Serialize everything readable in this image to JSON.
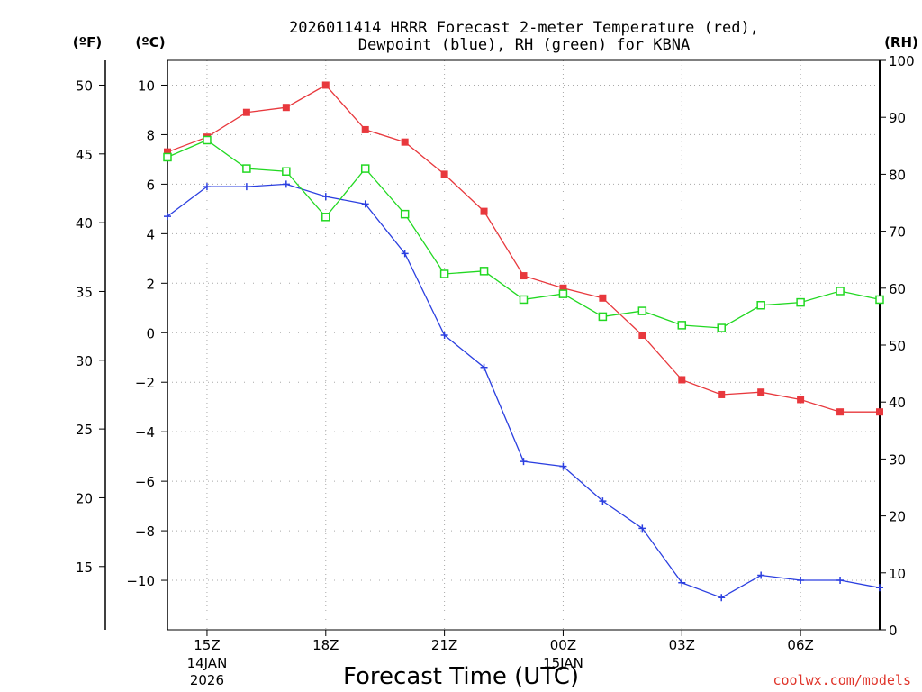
{
  "chart_data": {
    "type": "line",
    "title_line1": "2026011414 HRRR Forecast 2-meter Temperature (red),",
    "title_line2": "Dewpoint (blue), RH (green) for KBNA",
    "xlabel": "Forecast Time (UTC)",
    "credit": "coolwx.com/models",
    "unit_f": "(ºF)",
    "unit_c": "(ºC)",
    "unit_rh": "(RH)",
    "hours": [
      14,
      15,
      16,
      17,
      18,
      19,
      20,
      21,
      22,
      23,
      24,
      25,
      26,
      27,
      28,
      29,
      30,
      31,
      32
    ],
    "xlim": [
      14,
      32
    ],
    "c_lim": [
      -12,
      11
    ],
    "f_lim": [
      10.4,
      51.8
    ],
    "rh_lim": [
      0,
      100
    ],
    "c_ticks": [
      -10,
      -8,
      -6,
      -4,
      -2,
      0,
      2,
      4,
      6,
      8,
      10
    ],
    "c_tick_labels": [
      "−10",
      "−8",
      "−6",
      "−4",
      "−2",
      "0",
      "2",
      "4",
      "6",
      "8",
      "10"
    ],
    "f_ticks": [
      15,
      20,
      25,
      30,
      35,
      40,
      45,
      50
    ],
    "f_tick_labels": [
      "15",
      "20",
      "25",
      "30",
      "35",
      "40",
      "45",
      "50"
    ],
    "rh_ticks": [
      0,
      10,
      20,
      30,
      40,
      50,
      60,
      70,
      80,
      90,
      100
    ],
    "rh_tick_labels": [
      "0",
      "10",
      "20",
      "30",
      "40",
      "50",
      "60",
      "70",
      "80",
      "90",
      "100"
    ],
    "x_ticks": [
      {
        "hour": 15,
        "label": "15Z",
        "sub1": "14JAN",
        "sub2": "2026"
      },
      {
        "hour": 18,
        "label": "18Z",
        "sub1": "",
        "sub2": ""
      },
      {
        "hour": 21,
        "label": "21Z",
        "sub1": "",
        "sub2": ""
      },
      {
        "hour": 24,
        "label": "00Z",
        "sub1": "15JAN",
        "sub2": ""
      },
      {
        "hour": 27,
        "label": "03Z",
        "sub1": "",
        "sub2": ""
      },
      {
        "hour": 30,
        "label": "06Z",
        "sub1": "",
        "sub2": ""
      }
    ],
    "series": [
      {
        "name": "Temperature",
        "axis": "C",
        "color": "#e8383d",
        "marker": "filled-square",
        "values": [
          7.3,
          7.9,
          8.9,
          9.1,
          10.0,
          8.2,
          7.7,
          6.4,
          4.9,
          2.3,
          1.8,
          1.4,
          -0.1,
          -1.9,
          -2.5,
          -2.4,
          -2.7,
          -3.2,
          -3.2
        ]
      },
      {
        "name": "Dewpoint",
        "axis": "C",
        "color": "#2b3fe0",
        "marker": "plus",
        "values": [
          4.7,
          5.9,
          5.9,
          6.0,
          5.5,
          5.2,
          3.2,
          -0.1,
          -1.4,
          -5.2,
          -5.4,
          -6.8,
          -7.9,
          -10.1,
          -10.7,
          -9.8,
          -10.0,
          -10.0,
          -10.3
        ]
      },
      {
        "name": "RH",
        "axis": "RH",
        "color": "#22d822",
        "marker": "open-square",
        "values": [
          83,
          86,
          81,
          80.5,
          72.5,
          81,
          73,
          62.5,
          63,
          58,
          59,
          55,
          56,
          53.5,
          53,
          57,
          57.5,
          59.5,
          58
        ]
      }
    ]
  }
}
